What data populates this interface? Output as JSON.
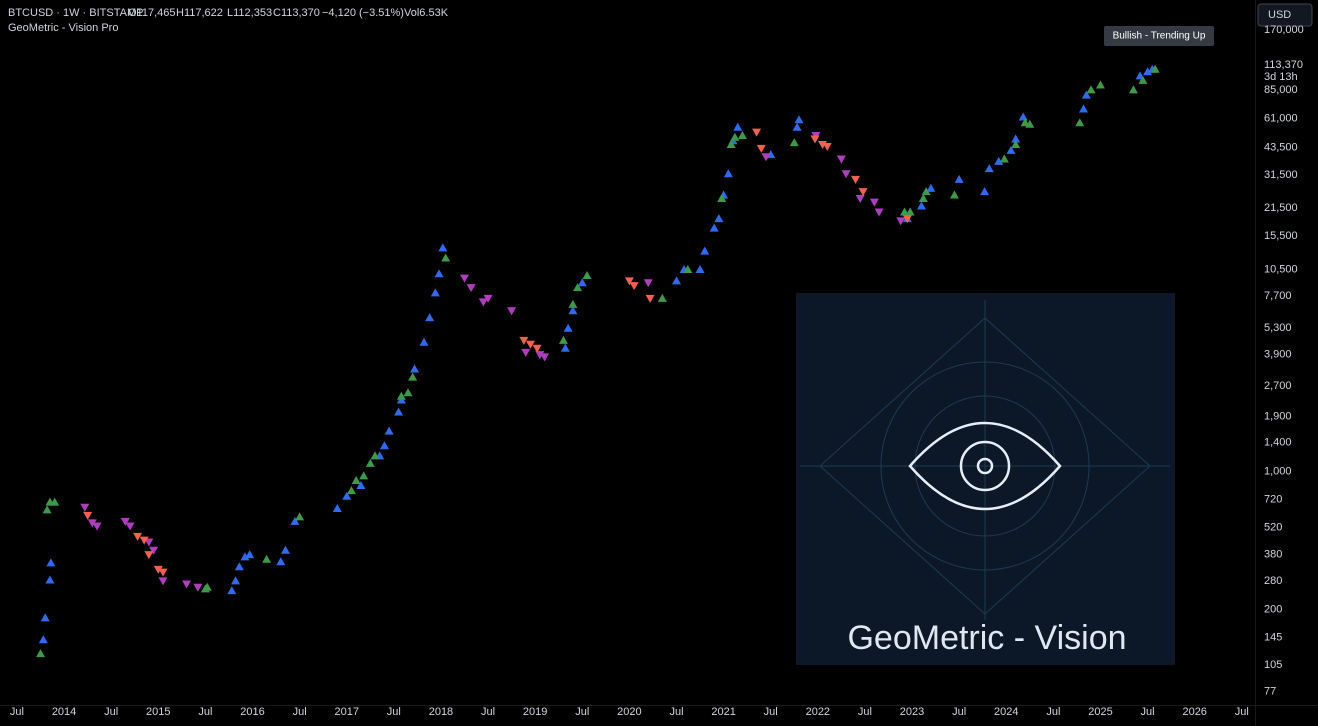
{
  "header": {
    "symbol": "BTCUSD · 1W · BITSTAMP",
    "open": "O117,465",
    "high": "H117,622",
    "low": "L112,353",
    "close": "C113,370",
    "change": "−4,120 (−3.51%)",
    "volume": "Vol6.53K",
    "indicator": "GeoMetric - Vision Pro",
    "currency": "USD",
    "badge": "Bullish - Trending Up",
    "watermark": "GeoMetric - Vision"
  },
  "chart_data": {
    "type": "scatter",
    "log_scale": true,
    "grid": false,
    "xlim": [
      2013.32,
      2026.64
    ],
    "xticks": [
      {
        "value": 2013.5,
        "label": "Jul"
      },
      2014,
      {
        "value": 2014.5,
        "label": "Jul"
      },
      2015,
      {
        "value": 2015.5,
        "label": "Jul"
      },
      2016,
      {
        "value": 2016.5,
        "label": "Jul"
      },
      2017,
      {
        "value": 2017.5,
        "label": "Jul"
      },
      2018,
      {
        "value": 2018.5,
        "label": "Jul"
      },
      2019,
      {
        "value": 2019.5,
        "label": "Jul"
      },
      2020,
      {
        "value": 2020.5,
        "label": "Jul"
      },
      2021,
      {
        "value": 2021.5,
        "label": "Jul"
      },
      2022,
      {
        "value": 2022.5,
        "label": "Jul"
      },
      2023,
      {
        "value": 2023.5,
        "label": "Jul"
      },
      2024,
      {
        "value": 2024.5,
        "label": "Jul"
      },
      2025,
      {
        "value": 2025.5,
        "label": "Jul"
      },
      2026,
      {
        "value": 2026.5,
        "label": "Jul"
      }
    ],
    "ylim": [
      66,
      242000
    ],
    "yticks": [
      77,
      105,
      145,
      200,
      280,
      380,
      520,
      720,
      {
        "value": 1000,
        "label": "1,000"
      },
      {
        "value": 1400,
        "label": "1,400"
      },
      {
        "value": 1900,
        "label": "1,900"
      },
      {
        "value": 2700,
        "label": "2,700"
      },
      {
        "value": 3900,
        "label": "3,900"
      },
      {
        "value": 5300,
        "label": "5,300"
      },
      {
        "value": 7700,
        "label": "7,700"
      },
      {
        "value": 10500,
        "label": "10,500"
      },
      {
        "value": 15500,
        "label": "15,500"
      },
      {
        "value": 21500,
        "label": "21,500"
      },
      {
        "value": 31500,
        "label": "31,500"
      },
      {
        "value": 43500,
        "label": "43,500"
      },
      {
        "value": 61000,
        "label": "61,000"
      },
      {
        "value": 85000,
        "label": "85,000"
      },
      {
        "value": 170000,
        "label": "170,000"
      }
    ],
    "last_price": {
      "value": 113370,
      "label": "113,370"
    },
    "countdown": "3d 13h",
    "series": [
      {
        "color": "#2f6bf0",
        "marker": "up",
        "x": [
          2013.78,
          2013.8,
          2013.85,
          2013.86,
          2015.78,
          2015.82,
          2015.86,
          2015.92,
          2015.97,
          2016.3,
          2016.35,
          2016.45,
          2016.9,
          2017.0,
          2017.15,
          2017.35,
          2017.4,
          2017.45,
          2017.55,
          2017.58,
          2017.72,
          2017.82,
          2017.88,
          2017.94,
          2017.98,
          2018.02,
          2019.32,
          2019.35,
          2019.4,
          2019.5,
          2020.5,
          2020.58,
          2020.75,
          2020.8,
          2020.9,
          2020.95,
          2021.0,
          2021.05,
          2021.1,
          2021.15,
          2021.5,
          2021.78,
          2021.8,
          2022.95,
          2023.1,
          2023.2,
          2023.5,
          2023.77,
          2023.82,
          2023.92,
          2024.05,
          2024.1,
          2024.18,
          2024.82,
          2024.85,
          2025.42,
          2025.5,
          2025.55
        ],
        "values": [
          141,
          182,
          283,
          345,
          250,
          280,
          330,
          370,
          380,
          350,
          400,
          560,
          650,
          750,
          850,
          1200,
          1350,
          1600,
          2000,
          2300,
          3300,
          4500,
          6000,
          8000,
          10000,
          13500,
          4200,
          5300,
          6500,
          9000,
          9200,
          10500,
          10500,
          13000,
          17000,
          19000,
          25000,
          32000,
          47000,
          55000,
          40000,
          55000,
          60000,
          19000,
          22000,
          27000,
          30000,
          26000,
          34000,
          37000,
          42000,
          48000,
          62000,
          68000,
          80000,
          100000,
          105000,
          108000
        ]
      },
      {
        "color": "#3d9a48",
        "marker": "up",
        "x": [
          2013.75,
          2013.82,
          2013.85,
          2013.9,
          2015.5,
          2015.52,
          2016.15,
          2016.5,
          2017.05,
          2017.1,
          2017.18,
          2017.25,
          2017.3,
          2017.58,
          2017.65,
          2017.7,
          2018.05,
          2019.3,
          2019.4,
          2019.45,
          2019.55,
          2020.35,
          2020.62,
          2020.98,
          2021.08,
          2021.12,
          2021.2,
          2021.75,
          2022.92,
          2022.98,
          2023.12,
          2023.15,
          2023.45,
          2023.98,
          2024.1,
          2024.2,
          2024.25,
          2024.78,
          2024.9,
          2025.0,
          2025.35,
          2025.45,
          2025.58
        ],
        "values": [
          120,
          640,
          700,
          700,
          255,
          260,
          360,
          590,
          800,
          900,
          950,
          1100,
          1200,
          2400,
          2500,
          3000,
          12000,
          4600,
          7000,
          8500,
          9800,
          7500,
          10500,
          24000,
          45000,
          49000,
          50000,
          46000,
          20500,
          20500,
          24000,
          26000,
          25000,
          38000,
          45000,
          58000,
          57000,
          58000,
          85000,
          90000,
          85000,
          95000,
          108000
        ]
      },
      {
        "color": "#b03cc0",
        "marker": "down",
        "x": [
          2014.22,
          2014.3,
          2014.35,
          2014.65,
          2014.7,
          2014.9,
          2014.95,
          2015.05,
          2015.3,
          2015.42,
          2018.25,
          2018.32,
          2018.45,
          2018.5,
          2018.75,
          2018.9,
          2019.05,
          2019.1,
          2020.2,
          2021.45,
          2021.98,
          2022.25,
          2022.3,
          2022.45,
          2022.6,
          2022.65,
          2022.88
        ],
        "values": [
          660,
          550,
          530,
          560,
          530,
          440,
          400,
          280,
          270,
          260,
          9500,
          8500,
          7200,
          7500,
          6500,
          4000,
          3900,
          3800,
          9000,
          39000,
          50000,
          38000,
          32000,
          24000,
          23000,
          20500,
          18500
        ]
      },
      {
        "color": "#f2604f",
        "marker": "down",
        "x": [
          2014.25,
          2014.78,
          2014.85,
          2014.9,
          2015.0,
          2015.05,
          2018.88,
          2018.95,
          2019.02,
          2020.0,
          2020.05,
          2020.22,
          2021.35,
          2021.4,
          2021.97,
          2022.05,
          2022.1,
          2022.4,
          2022.48,
          2022.95
        ],
        "values": [
          600,
          470,
          450,
          380,
          320,
          310,
          4600,
          4400,
          4200,
          9200,
          8700,
          7500,
          52000,
          43000,
          48000,
          45000,
          44000,
          30000,
          26000,
          19000
        ]
      }
    ]
  }
}
